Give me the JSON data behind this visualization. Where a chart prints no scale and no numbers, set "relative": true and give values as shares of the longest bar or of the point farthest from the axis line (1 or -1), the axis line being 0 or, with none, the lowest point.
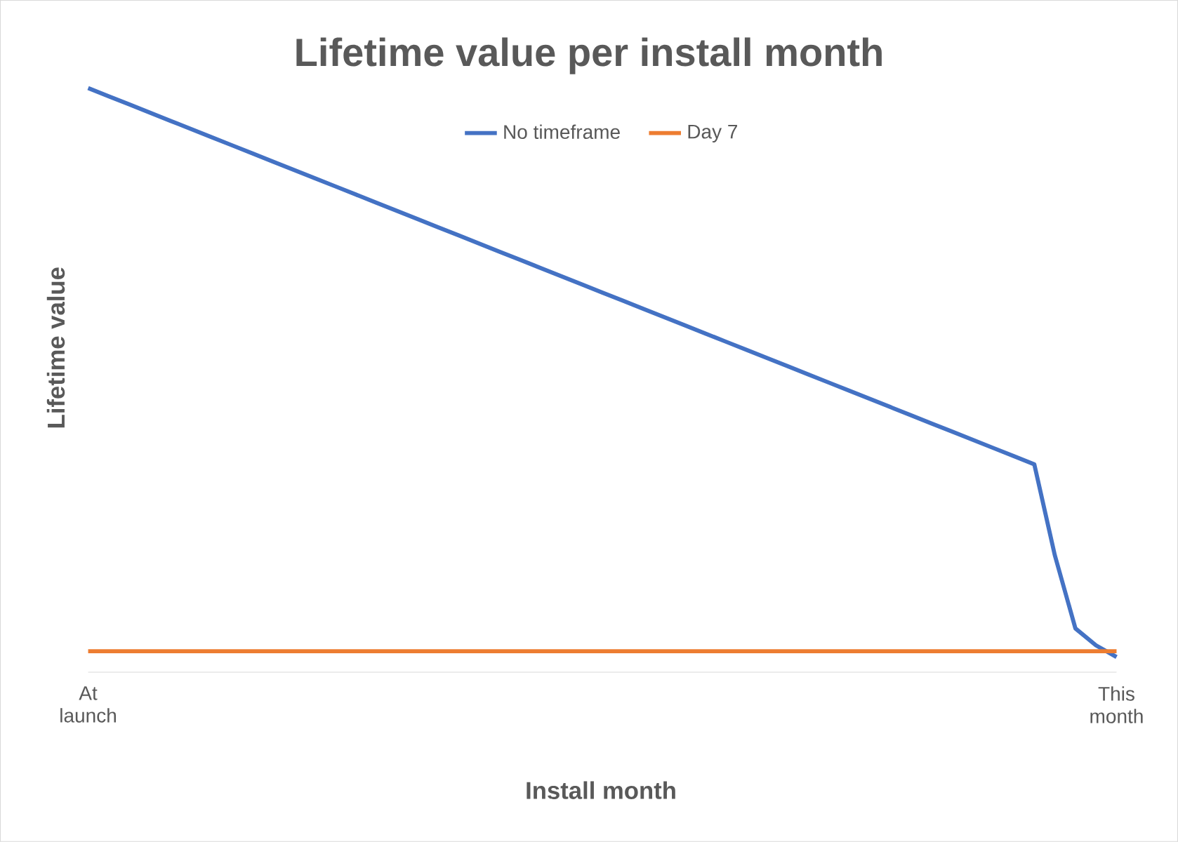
{
  "chart_data": {
    "type": "line",
    "title": "Lifetime value per install month",
    "xlabel": "Install month",
    "ylabel": "Lifetime value",
    "relative": true,
    "legend": "top",
    "categories": [
      "At launch",
      null,
      null,
      null,
      null,
      null,
      null,
      null,
      null,
      null,
      null,
      null,
      null,
      null,
      null,
      null,
      null,
      null,
      null,
      null,
      null,
      null,
      null,
      null,
      null,
      null,
      null,
      null,
      null,
      null,
      null,
      null,
      null,
      null,
      null,
      null,
      null,
      null,
      null,
      null,
      null,
      null,
      null,
      null,
      null,
      null,
      null,
      null,
      null,
      null,
      "This month"
    ],
    "series": [
      {
        "name": "No timeframe",
        "color": "#4472c4",
        "values": [
          1.0,
          0.986,
          0.972,
          0.958,
          0.944,
          0.93,
          0.916,
          0.902,
          0.888,
          0.874,
          0.86,
          0.846,
          0.832,
          0.818,
          0.804,
          0.79,
          0.776,
          0.762,
          0.748,
          0.734,
          0.72,
          0.706,
          0.692,
          0.678,
          0.664,
          0.65,
          0.636,
          0.622,
          0.608,
          0.594,
          0.58,
          0.566,
          0.552,
          0.538,
          0.524,
          0.51,
          0.496,
          0.482,
          0.468,
          0.454,
          0.44,
          0.426,
          0.412,
          0.398,
          0.384,
          0.37,
          0.356,
          0.2,
          0.075,
          0.046,
          0.026
        ]
      },
      {
        "name": "Day 7",
        "color": "#ed7d31",
        "values": [
          0.036,
          0.036,
          0.036,
          0.036,
          0.036,
          0.036,
          0.036,
          0.036,
          0.036,
          0.036,
          0.036,
          0.036,
          0.036,
          0.036,
          0.036,
          0.036,
          0.036,
          0.036,
          0.036,
          0.036,
          0.036,
          0.036,
          0.036,
          0.036,
          0.036,
          0.036,
          0.036,
          0.036,
          0.036,
          0.036,
          0.036,
          0.036,
          0.036,
          0.036,
          0.036,
          0.036,
          0.036,
          0.036,
          0.036,
          0.036,
          0.036,
          0.036,
          0.036,
          0.036,
          0.036,
          0.036,
          0.036,
          0.036,
          0.036,
          0.036,
          0.036
        ]
      }
    ]
  }
}
